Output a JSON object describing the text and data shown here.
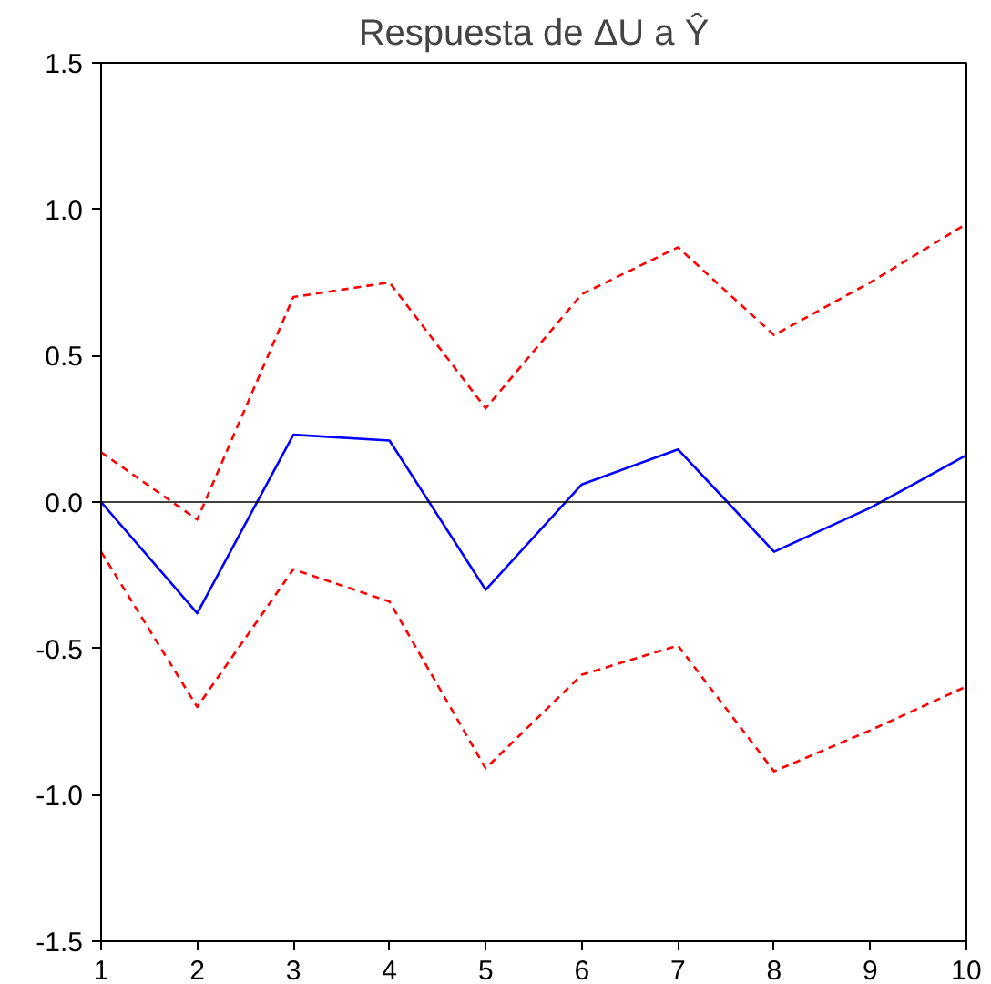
{
  "chart_data": {
    "type": "line",
    "title": "Respuesta de ΔU a Ŷ",
    "x": [
      1,
      2,
      3,
      4,
      5,
      6,
      7,
      8,
      9,
      10
    ],
    "xlim": [
      1,
      10
    ],
    "xticks": [
      1,
      2,
      3,
      4,
      5,
      6,
      7,
      8,
      9,
      10
    ],
    "ylim": [
      -1.5,
      1.5
    ],
    "yticks": [
      {
        "value": -1.5,
        "label": "-1.5"
      },
      {
        "value": -1.0,
        "label": "-1.0"
      },
      {
        "value": -0.5,
        "label": "-0.5"
      },
      {
        "value": 0,
        "label": "0.0"
      },
      {
        "value": 0.5,
        "label": "0.5"
      },
      {
        "value": 1.0,
        "label": "1.0"
      },
      {
        "value": 1.5,
        "label": "1.5"
      }
    ],
    "grid": false,
    "ref_lines": [
      {
        "axis": "y",
        "value": 0,
        "color": "#000000"
      }
    ],
    "series": [
      {
        "color": "#0000ff",
        "line_style": "solid",
        "values": [
          0,
          -0.38,
          0.23,
          0.21,
          -0.3,
          0.06,
          0.18,
          -0.17,
          -0.02,
          0.16
        ]
      },
      {
        "color": "#ff0000",
        "line_style": "dashed",
        "values": [
          0.17,
          -0.06,
          0.7,
          0.75,
          0.32,
          0.71,
          0.87,
          0.57,
          0.75,
          0.95
        ]
      },
      {
        "color": "#ff0000",
        "line_style": "dashed",
        "values": [
          -0.17,
          -0.7,
          -0.23,
          -0.34,
          -0.91,
          -0.59,
          -0.49,
          -0.92,
          -0.78,
          -0.63
        ]
      }
    ]
  }
}
